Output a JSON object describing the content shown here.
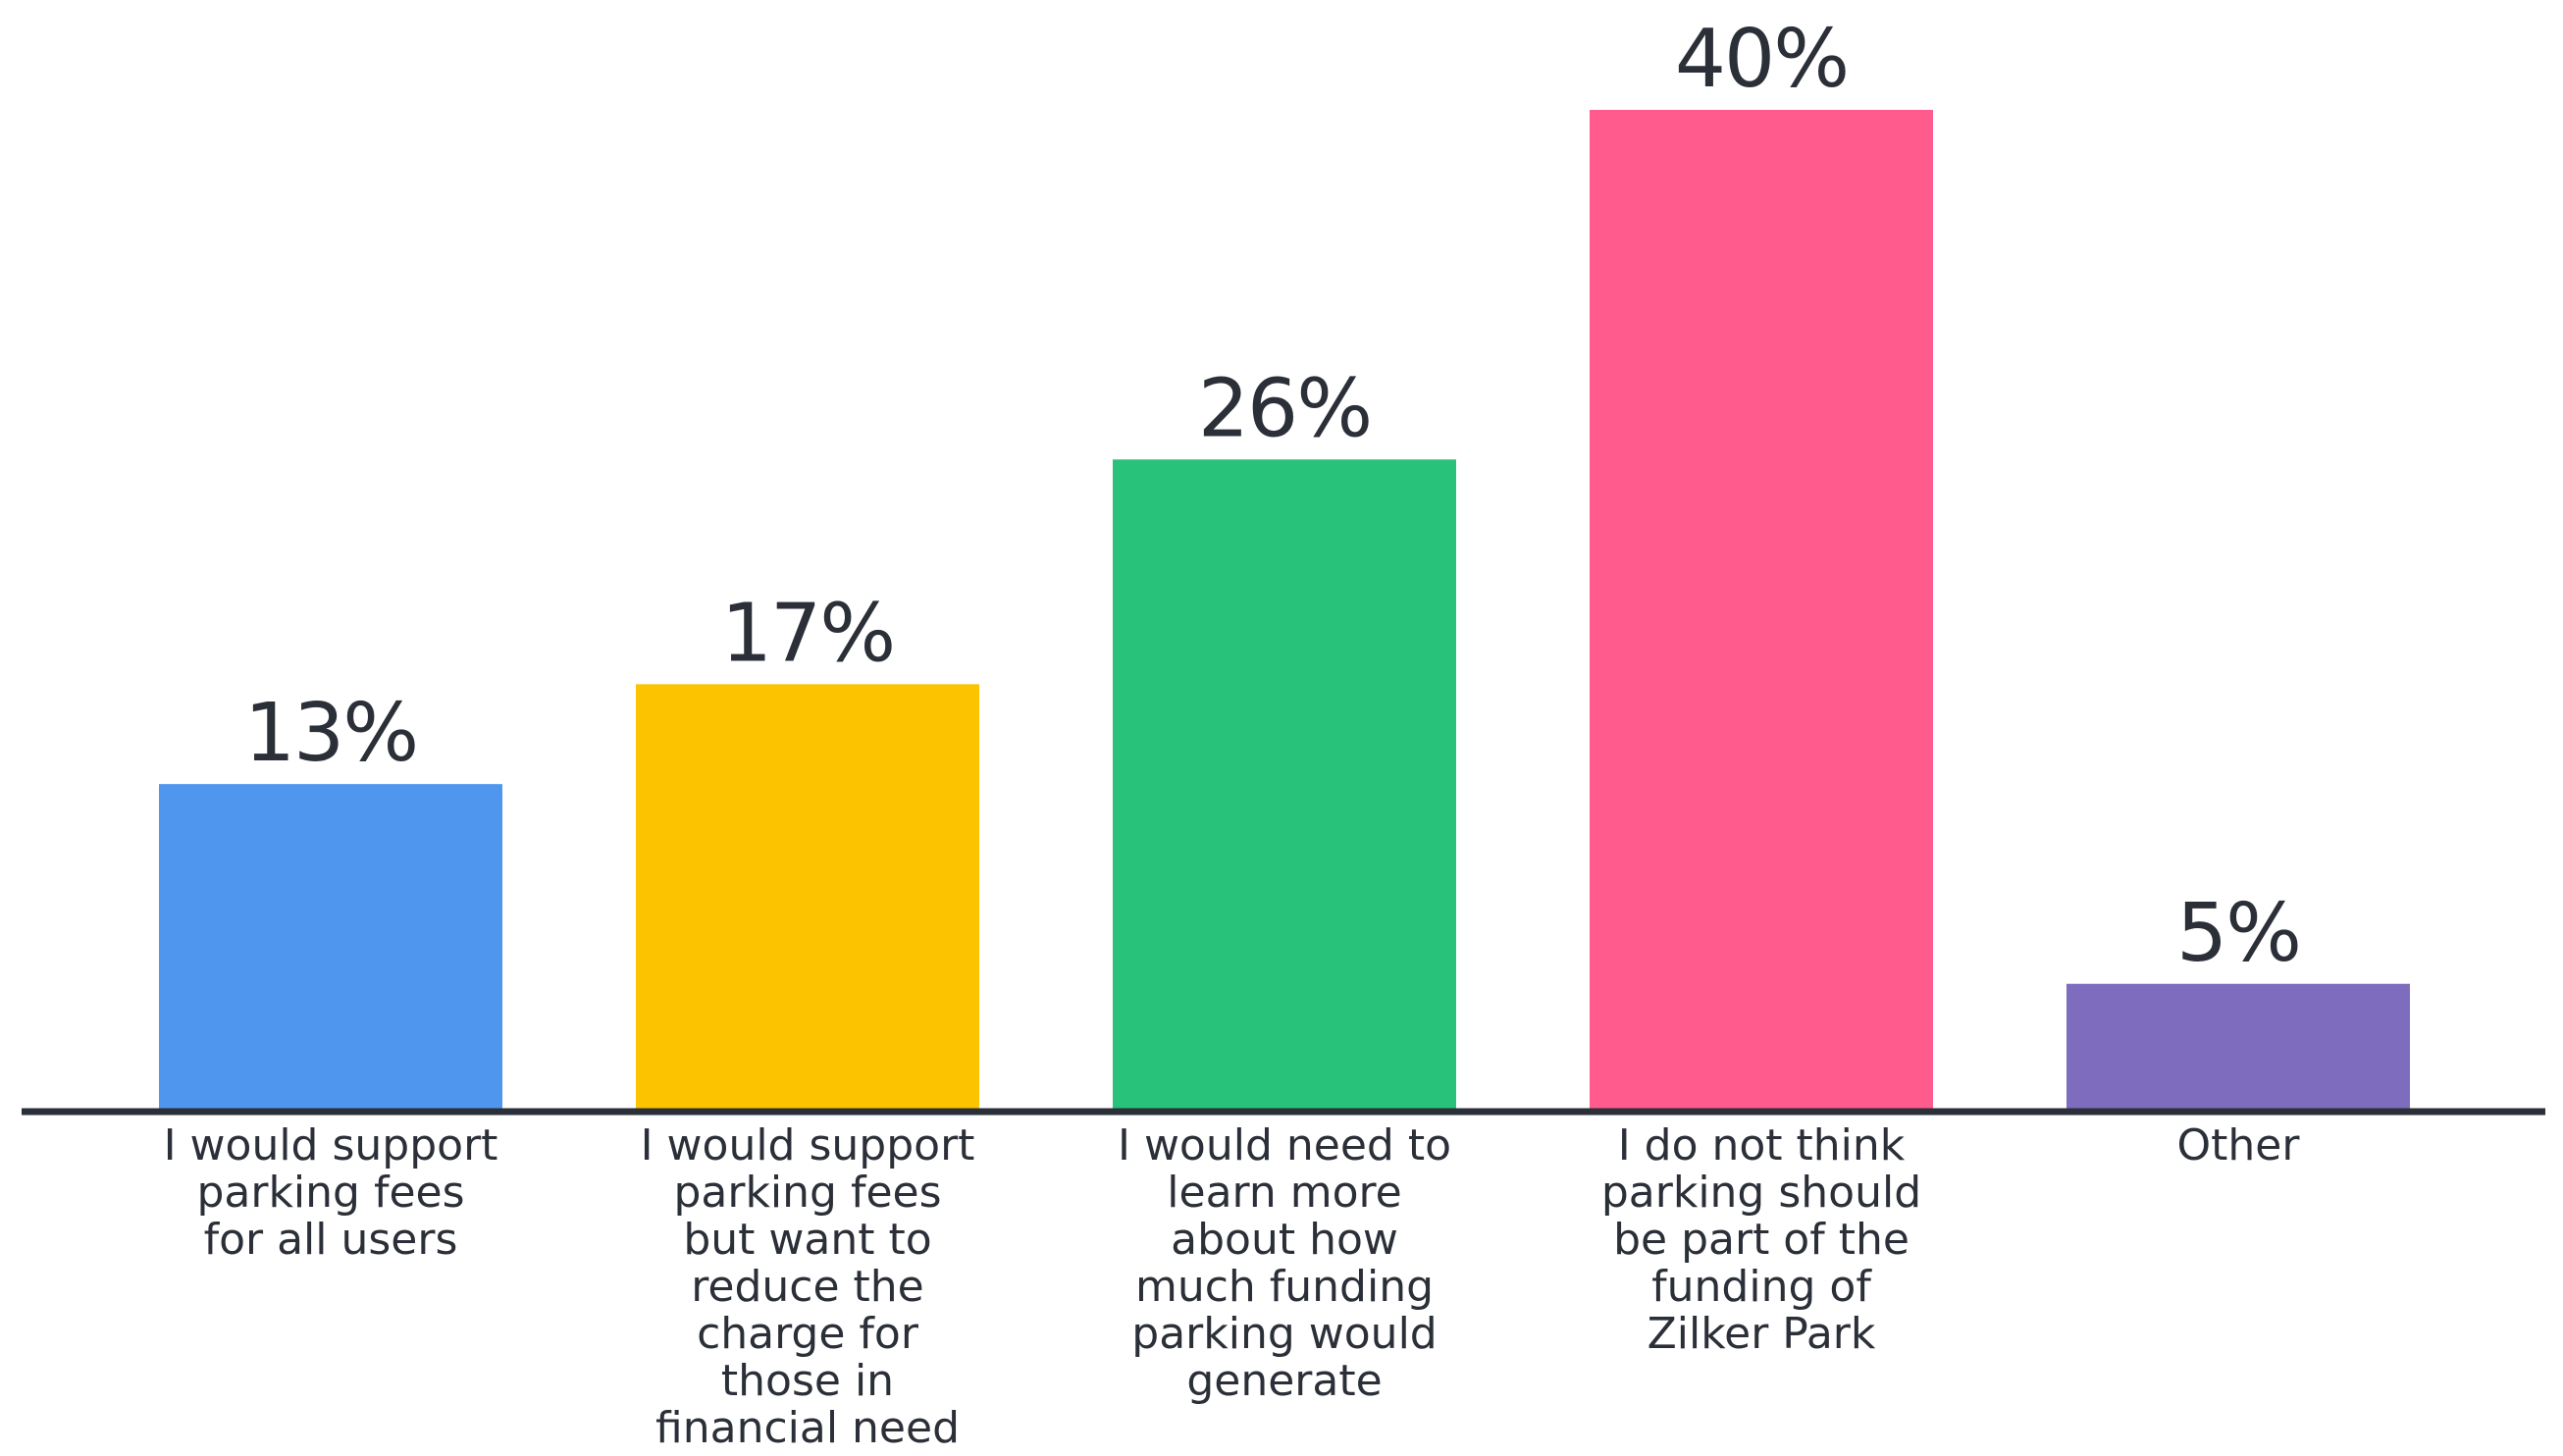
{
  "chart_data": {
    "type": "bar",
    "categories": [
      [
        "I would support",
        "parking fees",
        "for all users"
      ],
      [
        "I would support",
        "parking fees",
        "but want to",
        "reduce the",
        "charge for",
        "those in",
        "financial need"
      ],
      [
        "I would need to",
        "learn more",
        "about how",
        "much funding",
        "parking would",
        "generate"
      ],
      [
        "I do not think",
        "parking should",
        "be part of the",
        "funding of",
        "Zilker Park"
      ],
      [
        "Other"
      ]
    ],
    "values": [
      13,
      17,
      26,
      40,
      5
    ],
    "value_labels": [
      "13%",
      "17%",
      "26%",
      "40%",
      "5%"
    ],
    "colors": [
      "#4f97ee",
      "#fcc300",
      "#29c27b",
      "#ff5b8d",
      "#7e6cbf"
    ],
    "title": "",
    "xlabel": "",
    "ylabel": "",
    "ylim": [
      0,
      40
    ],
    "grid": false,
    "legend": "none"
  }
}
